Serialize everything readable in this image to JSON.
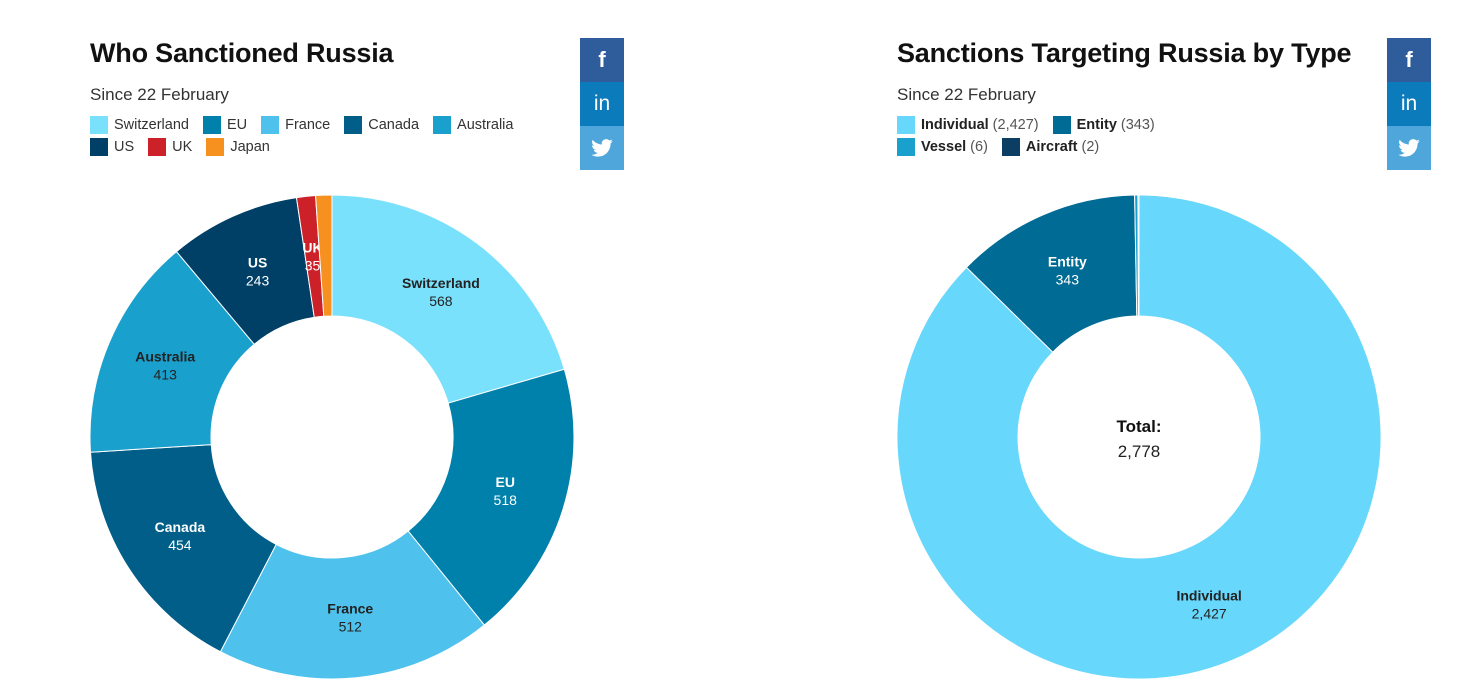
{
  "charts": [
    {
      "title": "Who Sanctioned Russia",
      "subtitle": "Since 22 February",
      "legend": [
        {
          "name": "Switzerland",
          "color": "#7ae1fd"
        },
        {
          "name": "EU",
          "color": "#0081ab"
        },
        {
          "name": "France",
          "color": "#4ec2ec"
        },
        {
          "name": "Canada",
          "color": "#005e88"
        },
        {
          "name": "Australia",
          "color": "#1aa0cd"
        },
        {
          "name": "US",
          "color": "#003f66"
        },
        {
          "name": "UK",
          "color": "#cc2129"
        },
        {
          "name": "Japan",
          "color": "#f6901e"
        }
      ],
      "share": {
        "facebook_icon": "f",
        "linkedin_icon": "in",
        "twitter_icon": "twitter-bird"
      }
    },
    {
      "title": "Sanctions Targeting Russia by Type",
      "subtitle": "Since 22 February",
      "legend": [
        {
          "name": "Individual",
          "count": "(2,427)",
          "color": "#67d7fb"
        },
        {
          "name": "Entity",
          "count": "(343)",
          "color": "#006b94"
        },
        {
          "name": "Vessel",
          "count": "(6)",
          "color": "#1aa0cd"
        },
        {
          "name": "Aircraft",
          "count": "(2)",
          "color": "#0b3e62"
        }
      ],
      "center_label": {
        "title": "Total:",
        "value": "2,778"
      },
      "share": {
        "facebook_icon": "f",
        "linkedin_icon": "in",
        "twitter_icon": "twitter-bird"
      }
    }
  ],
  "chart_data": [
    {
      "type": "pie",
      "donut": true,
      "title": "Who Sanctioned Russia",
      "subtitle": "Since 22 February",
      "legend_position": "top-left",
      "categories": [
        "Switzerland",
        "EU",
        "France",
        "Canada",
        "Australia",
        "US",
        "UK",
        "Japan"
      ],
      "values": [
        568,
        518,
        512,
        454,
        413,
        243,
        35,
        30
      ],
      "colors": [
        "#7ae1fd",
        "#0081ab",
        "#4ec2ec",
        "#005e88",
        "#1aa0cd",
        "#003f66",
        "#cc2129",
        "#f6901e"
      ],
      "slice_labels": [
        {
          "name": "Switzerland",
          "value": "568"
        },
        {
          "name": "EU",
          "value": "518"
        },
        {
          "name": "France",
          "value": "512"
        },
        {
          "name": "Canada",
          "value": "454"
        },
        {
          "name": "Australia",
          "value": "413"
        },
        {
          "name": "US",
          "value": "243"
        },
        {
          "name": "UK",
          "value": "35"
        },
        {
          "name": "",
          "value": ""
        }
      ],
      "label_colors": [
        "#222222",
        "#ffffff",
        "#222222",
        "#ffffff",
        "#222222",
        "#ffffff",
        "#ffffff",
        "#222222"
      ]
    },
    {
      "type": "pie",
      "donut": true,
      "title": "Sanctions Targeting Russia by Type",
      "subtitle": "Since 22 February",
      "legend_position": "top-left",
      "categories": [
        "Individual",
        "Entity",
        "Vessel",
        "Aircraft"
      ],
      "values": [
        2427,
        343,
        6,
        2
      ],
      "total": 2778,
      "colors": [
        "#67d7fb",
        "#006b94",
        "#1aa0cd",
        "#0b3e62"
      ],
      "slice_labels": [
        {
          "name": "Individual",
          "value": "2,427"
        },
        {
          "name": "Entity",
          "value": "343"
        },
        {
          "name": "",
          "value": ""
        },
        {
          "name": "",
          "value": ""
        }
      ],
      "label_colors": [
        "#222222",
        "#ffffff",
        "#ffffff",
        "#ffffff"
      ]
    }
  ]
}
